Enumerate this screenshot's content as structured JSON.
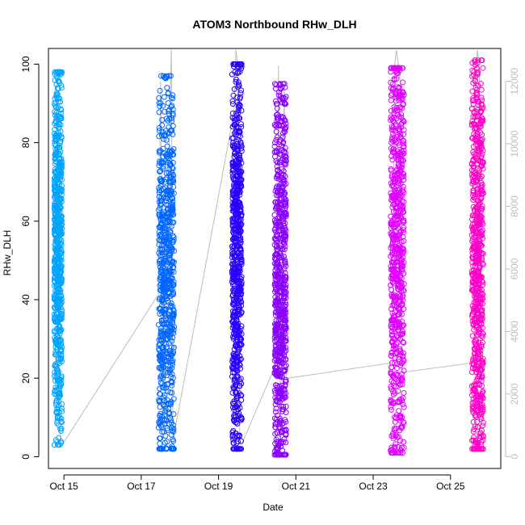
{
  "chart_data": {
    "type": "scatter",
    "title": "ATOM3 Northbound RHw_DLH",
    "xlabel": "Date",
    "ylabel": "RHw_DLH",
    "xlim": [
      14.6,
      26.3
    ],
    "ylim": [
      -3,
      104
    ],
    "x_ticks": [
      15,
      17,
      19,
      21,
      23,
      25
    ],
    "x_tick_labels": [
      "Oct 15",
      "Oct 17",
      "Oct 19",
      "Oct 21",
      "Oct 23",
      "Oct 25"
    ],
    "y_ticks": [
      0,
      20,
      40,
      60,
      80,
      100
    ],
    "y_tick_labels": [
      "0",
      "20",
      "40",
      "60",
      "80",
      "100"
    ],
    "y2_ticks": [
      0,
      2000,
      4000,
      6000,
      8000,
      10000,
      12000
    ],
    "y2_tick_labels": [
      "0",
      "2000",
      "4000",
      "6000",
      "8000",
      "10000",
      12000
    ],
    "y2lim": [
      -380,
      13050
    ],
    "grid": false,
    "legend": "none",
    "series": [
      {
        "color": "#00A5FF",
        "x_range": [
          14.75,
          14.95
        ],
        "y_range": [
          3,
          98
        ],
        "center": [
          14.85,
          55
        ],
        "spread": 22
      },
      {
        "color": "#0066FF",
        "x_range": [
          17.45,
          17.85
        ],
        "y_range": [
          2,
          97
        ],
        "center": [
          17.65,
          45
        ],
        "spread": 24
      },
      {
        "color": "#2800FF",
        "x_range": [
          19.35,
          19.6
        ],
        "y_range": [
          2,
          100
        ],
        "center": [
          19.47,
          50
        ],
        "spread": 26
      },
      {
        "color": "#8A00FF",
        "x_range": [
          20.45,
          20.75
        ],
        "y_range": [
          0.5,
          95
        ],
        "center": [
          20.6,
          40
        ],
        "spread": 24
      },
      {
        "color": "#E000FF",
        "x_range": [
          23.45,
          23.8
        ],
        "y_range": [
          1,
          99
        ],
        "center": [
          23.62,
          55
        ],
        "spread": 26
      },
      {
        "color": "#FF00C8",
        "x_range": [
          25.55,
          25.85
        ],
        "y_range": [
          2,
          101
        ],
        "center": [
          25.7,
          45
        ],
        "spread": 26
      }
    ],
    "altitude_series": {
      "color": "#bdbdbd",
      "x": [
        14.78,
        14.82,
        14.88,
        14.92,
        17.45,
        17.5,
        17.6,
        17.7,
        17.78,
        17.82,
        19.4,
        19.45,
        19.5,
        19.55,
        19.6,
        20.5,
        20.55,
        20.6,
        20.7,
        20.75,
        23.5,
        23.55,
        23.6,
        23.7,
        23.75,
        23.8,
        25.6,
        25.65,
        25.7,
        25.75,
        25.8
      ],
      "y": [
        2000,
        12300,
        1500,
        300,
        5200,
        12000,
        800,
        9000,
        13000,
        500,
        11000,
        13000,
        12500,
        400,
        400,
        3000,
        12500,
        100,
        12000,
        2500,
        3000,
        12500,
        13000,
        12000,
        2800,
        2700,
        3000,
        12500,
        13000,
        12000,
        2500
      ]
    }
  }
}
